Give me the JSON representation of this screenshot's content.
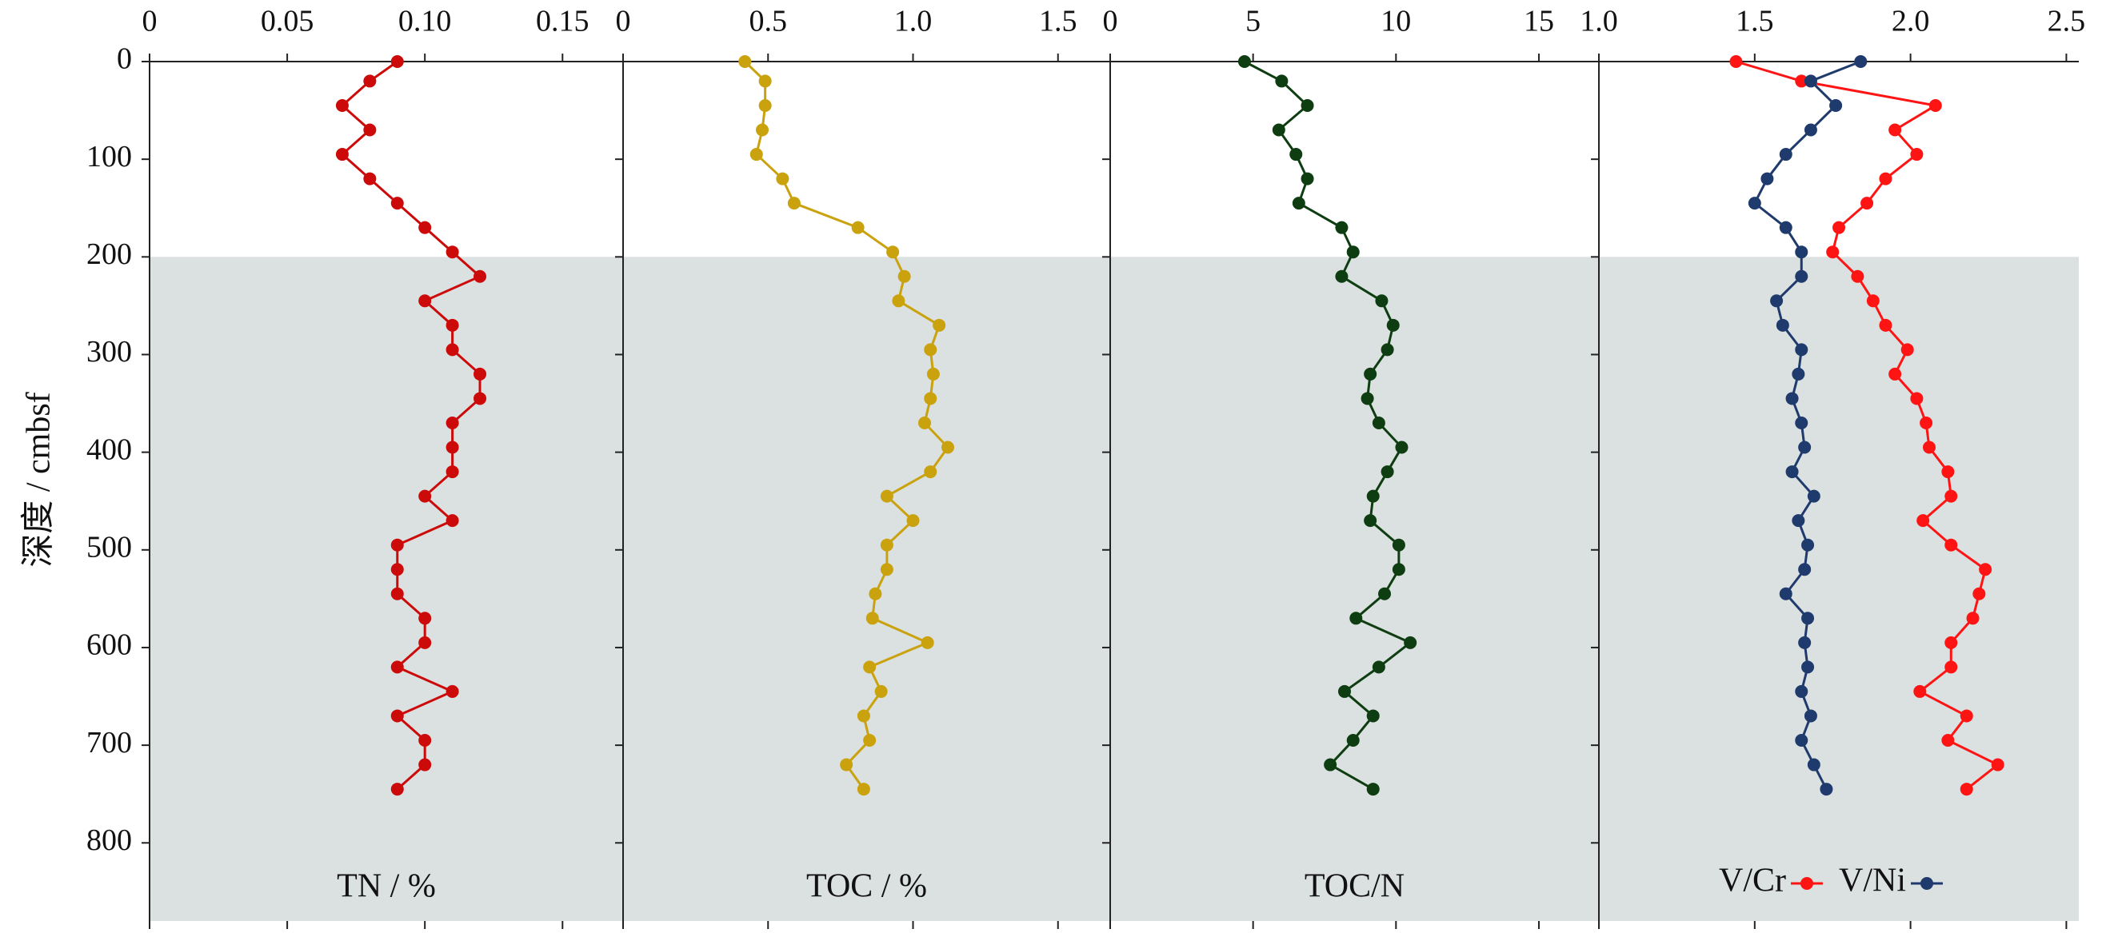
{
  "shaded_depth": [
    200,
    880
  ],
  "chart_data": [
    {
      "type": "line",
      "ylabel": "深度 / cmbsf",
      "label": "TN / %",
      "color": "#cc0a0a",
      "y": [
        0,
        20,
        45,
        70,
        95,
        120,
        145,
        170,
        195,
        220,
        245,
        270,
        295,
        320,
        345,
        370,
        395,
        420,
        445,
        470,
        495,
        520,
        545,
        570,
        595,
        620,
        645,
        670,
        695,
        720,
        745
      ],
      "values": [
        0.09,
        0.08,
        0.07,
        0.08,
        0.07,
        0.08,
        0.09,
        0.1,
        0.11,
        0.12,
        0.1,
        0.11,
        0.11,
        0.12,
        0.12,
        0.11,
        0.11,
        0.11,
        0.1,
        0.11,
        0.09,
        0.09,
        0.09,
        0.1,
        0.1,
        0.09,
        0.11,
        0.09,
        0.1,
        0.1,
        0.09
      ],
      "xlim": [
        0,
        0.172
      ],
      "xticks": [
        0,
        0.05,
        {
          "value": 0.1,
          "label": "0.10"
        },
        0.15
      ],
      "ylim": [
        0,
        880
      ],
      "yticks": [
        0,
        100,
        200,
        300,
        400,
        500,
        600,
        700,
        800
      ]
    },
    {
      "type": "line",
      "label": "TOC / %",
      "color": "#c9a20e",
      "y": [
        0,
        20,
        45,
        70,
        95,
        120,
        145,
        170,
        195,
        220,
        245,
        270,
        295,
        320,
        345,
        370,
        395,
        420,
        445,
        470,
        495,
        520,
        545,
        570,
        595,
        620,
        645,
        670,
        695,
        720,
        745
      ],
      "values": [
        0.42,
        0.49,
        0.49,
        0.48,
        0.46,
        0.55,
        0.59,
        0.81,
        0.93,
        0.97,
        0.95,
        1.09,
        1.06,
        1.07,
        1.06,
        1.04,
        1.12,
        1.06,
        0.91,
        1.0,
        0.91,
        0.91,
        0.87,
        0.86,
        1.05,
        0.85,
        0.89,
        0.83,
        0.85,
        0.77,
        0.83
      ],
      "xlim": [
        0,
        1.68
      ],
      "xticks": [
        0,
        0.5,
        {
          "value": 1,
          "label": "1.0"
        },
        1.5
      ]
    },
    {
      "type": "line",
      "label": "TOC/N",
      "color": "#0d3d10",
      "y": [
        0,
        20,
        45,
        70,
        95,
        120,
        145,
        170,
        195,
        220,
        245,
        270,
        295,
        320,
        345,
        370,
        395,
        420,
        445,
        470,
        495,
        520,
        545,
        570,
        595,
        620,
        645,
        670,
        695,
        720,
        745
      ],
      "values": [
        4.7,
        6.0,
        6.9,
        5.9,
        6.5,
        6.9,
        6.6,
        8.1,
        8.5,
        8.1,
        9.5,
        9.9,
        9.7,
        9.1,
        9.0,
        9.4,
        10.2,
        9.7,
        9.2,
        9.1,
        10.1,
        10.1,
        9.6,
        8.6,
        10.5,
        9.4,
        8.2,
        9.2,
        8.5,
        7.7,
        9.2
      ],
      "xlim": [
        0,
        17.1
      ],
      "xticks": [
        0,
        5,
        10,
        15
      ]
    },
    {
      "type": "line",
      "legend": "bottom",
      "y": [
        0,
        20,
        45,
        70,
        95,
        120,
        145,
        170,
        195,
        220,
        245,
        270,
        295,
        320,
        345,
        370,
        395,
        420,
        445,
        470,
        495,
        520,
        545,
        570,
        595,
        620,
        645,
        670,
        695,
        720,
        745
      ],
      "series": [
        {
          "name": "V/Cr",
          "color": "#ff1414",
          "values": [
            1.44,
            1.65,
            2.08,
            1.95,
            2.02,
            1.92,
            1.86,
            1.77,
            1.75,
            1.83,
            1.88,
            1.92,
            1.99,
            1.95,
            2.02,
            2.05,
            2.06,
            2.12,
            2.13,
            2.04,
            2.13,
            2.24,
            2.22,
            2.2,
            2.13,
            2.13,
            2.03,
            2.18,
            2.12,
            2.28,
            2.18
          ]
        },
        {
          "name": "V/Ni",
          "color": "#1f3a6c",
          "values": [
            1.84,
            1.68,
            1.76,
            1.68,
            1.6,
            1.54,
            1.5,
            1.6,
            1.65,
            1.65,
            1.57,
            1.59,
            1.65,
            1.64,
            1.62,
            1.65,
            1.66,
            1.62,
            1.69,
            1.64,
            1.67,
            1.66,
            1.6,
            1.67,
            1.66,
            1.67,
            1.65,
            1.68,
            1.65,
            1.69,
            1.73
          ]
        }
      ],
      "xlim": [
        1,
        2.54
      ],
      "xticks": [
        {
          "value": 1,
          "label": "1.0"
        },
        1.5,
        {
          "value": 2,
          "label": "2.0"
        },
        2.5
      ]
    }
  ]
}
